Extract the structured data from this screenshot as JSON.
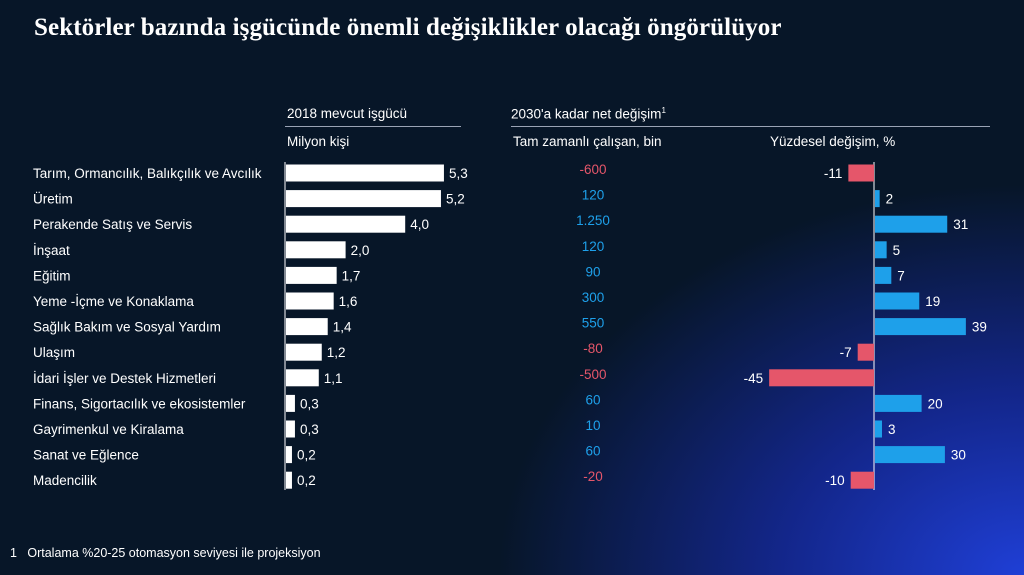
{
  "title": "Sektörler bazında işgücünde önemli değişiklikler olacağı öngörülüyor",
  "headers": {
    "workforce_top": "2018 mevcut işgücü",
    "workforce_unit": "Milyon kişi",
    "change_top": "2030'a kadar net değişim",
    "change_sup": "1",
    "fte_unit": "Tam zamanlı çalışan, bin",
    "pct_unit": "Yüzdesel değişim, %"
  },
  "footnote": {
    "marker": "1",
    "text": "Ortalama %20-25 otomasyon seviyesi ile projeksiyon"
  },
  "colors": {
    "positive": "#1ea0ea",
    "negative": "#e5566a",
    "bar_white": "#ffffff"
  },
  "chart_data": {
    "type": "bar",
    "categories": [
      "Tarım, Ormancılık, Balıkçılık ve Avcılık",
      "Üretim",
      "Perakende Satış ve Servis",
      "İnşaat",
      "Eğitim",
      "Yeme -İçme ve Konaklama",
      "Sağlık Bakım ve Sosyal Yardım",
      "Ulaşım",
      "İdari İşler ve Destek Hizmetleri",
      "Finans, Sigortacılık ve ekosistemler",
      "Gayrimenkul ve Kiralama",
      "Sanat ve Eğlence",
      "Madencilik"
    ],
    "series": [
      {
        "name": "2018 mevcut işgücü",
        "values": [
          5.3,
          5.2,
          4.0,
          2.0,
          1.7,
          1.6,
          1.4,
          1.2,
          1.1,
          0.3,
          0.3,
          0.2,
          0.2
        ],
        "labels": [
          "5,3",
          "5,2",
          "4,0",
          "2,0",
          "1,7",
          "1,6",
          "1,4",
          "1,2",
          "1,1",
          "0,3",
          "0,3",
          "0,2",
          "0,2"
        ]
      },
      {
        "name": "Tam zamanlı çalışan, bin",
        "values": [
          -600,
          120,
          1250,
          120,
          90,
          300,
          550,
          -80,
          -500,
          60,
          10,
          60,
          -20
        ],
        "labels": [
          "-600",
          "120",
          "1.250",
          "120",
          "90",
          "300",
          "550",
          "-80",
          "-500",
          "60",
          "10",
          "60",
          "-20"
        ]
      },
      {
        "name": "Yüzdesel değişim, %",
        "values": [
          -11,
          2,
          31,
          5,
          7,
          19,
          39,
          -7,
          -45,
          20,
          3,
          30,
          -10
        ],
        "labels": [
          "-11",
          "2",
          "31",
          "5",
          "7",
          "19",
          "39",
          "-7",
          "-45",
          "20",
          "3",
          "30",
          "-10"
        ]
      }
    ]
  }
}
